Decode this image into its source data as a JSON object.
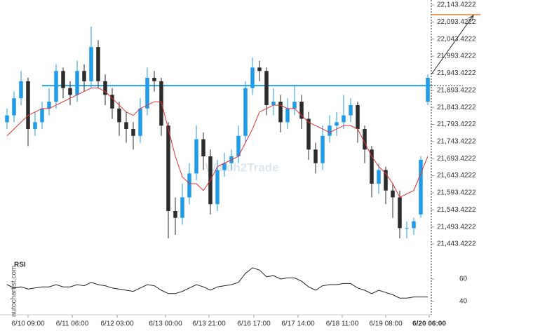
{
  "chart_data": {
    "type": "candlestick",
    "watermark": "Watch2Trade",
    "source": "autochartist.com",
    "rsi_label": "RSI",
    "bull_color": "#1e9be9",
    "bear_color": "#2b2b2b",
    "ma_color": "#e8312f",
    "level_color": "#29a3e0",
    "target_color": "#f08a3a",
    "xlim": [
      -1,
      60.5
    ],
    "xticks": [
      {
        "value": 3,
        "label": "6/10 09:00"
      },
      {
        "value": 9.3,
        "label": "6/11 06:00"
      },
      {
        "value": 15.7,
        "label": "6/12 03:00"
      },
      {
        "value": 22.6,
        "label": "6/13 00:00"
      },
      {
        "value": 28.8,
        "label": "6/13 21:00"
      },
      {
        "value": 35.2,
        "label": "6/16 17:00"
      },
      {
        "value": 41.5,
        "label": "6/17 14:00"
      },
      {
        "value": 47.8,
        "label": "6/18 11:00"
      },
      {
        "value": 54,
        "label": "6/19 08:00"
      },
      {
        "value": 60.2,
        "label": "6/20 06:00"
      }
    ],
    "ylim": [
      21418.8,
      22157.8
    ],
    "yticks": [
      {
        "value": 22143.4222,
        "label": "22,143.4222"
      },
      {
        "value": 22093.4222,
        "label": "22,093.4222"
      },
      {
        "value": 22043.4222,
        "label": "22,043.4222"
      },
      {
        "value": 21993.4222,
        "label": "21,993.4222"
      },
      {
        "value": 21943.4222,
        "label": "21,943.4222"
      },
      {
        "value": 21893.4222,
        "label": "21,893.4222"
      },
      {
        "value": 21843.4222,
        "label": "21,843.4222"
      },
      {
        "value": 21793.4222,
        "label": "21,793.4222"
      },
      {
        "value": 21743.4222,
        "label": "21,743.4222"
      },
      {
        "value": 21693.4222,
        "label": "21,693.4222"
      },
      {
        "value": 21643.4222,
        "label": "21,643.4222"
      },
      {
        "value": 21593.4222,
        "label": "21,593.4222"
      },
      {
        "value": 21543.4222,
        "label": "21,543.4222"
      },
      {
        "value": 21493.4222,
        "label": "21,493.4222"
      },
      {
        "value": 21443.4222,
        "label": "21,443.4222"
      }
    ],
    "level": 21907,
    "arrow_from": [
      60.5,
      21940
    ],
    "arrow_to": [
      66.5,
      22113
    ],
    "target": 22115,
    "target_x": [
      60.5,
      67.5
    ],
    "open": [
      21800,
      21820,
      21870,
      21920,
      21780,
      21800,
      21840,
      21860,
      21950,
      21900,
      21880,
      21950,
      21920,
      22020,
      21920,
      21880,
      21840,
      21800,
      21780,
      21760,
      21840,
      21930,
      21920,
      21790,
      21540,
      21520,
      21580,
      21650,
      21750,
      21700,
      21560,
      21660,
      21680,
      21700,
      21760,
      21900,
      21960,
      21950,
      21850,
      21860,
      21800,
      21840,
      21860,
      21810,
      21720,
      21680,
      21760,
      21790,
      21800,
      21820,
      21850,
      21780,
      21720,
      21620,
      21660,
      21600,
      21580,
      21490,
      21490,
      21530,
      21860
    ],
    "high": [
      21840,
      21890,
      21950,
      21930,
      21830,
      21860,
      21900,
      21970,
      21960,
      21920,
      21980,
      21970,
      22080,
      22040,
      21940,
      21900,
      21860,
      21830,
      21800,
      21870,
      21960,
      21950,
      21930,
      21800,
      21580,
      21620,
      21680,
      21790,
      21770,
      21720,
      21690,
      21710,
      21720,
      21790,
      21920,
      21990,
      21980,
      21960,
      21900,
      21880,
      21870,
      21910,
      21880,
      21830,
      21740,
      21790,
      21820,
      21830,
      21880,
      21870,
      21860,
      21790,
      21730,
      21680,
      21670,
      21620,
      21600,
      21510,
      21520,
      21700,
      21940
    ],
    "low": [
      21780,
      21800,
      21850,
      21730,
      21760,
      21780,
      21820,
      21840,
      21870,
      21850,
      21860,
      21890,
      21900,
      21900,
      21850,
      21810,
      21760,
      21740,
      21720,
      21740,
      21820,
      21890,
      21760,
      21460,
      21470,
      21500,
      21560,
      21630,
      21660,
      21530,
      21540,
      21640,
      21660,
      21680,
      21740,
      21880,
      21920,
      21820,
      21820,
      21770,
      21780,
      21820,
      21780,
      21690,
      21650,
      21660,
      21740,
      21760,
      21780,
      21800,
      21740,
      21680,
      21580,
      21590,
      21560,
      21520,
      21460,
      21460,
      21470,
      21520,
      21850
    ],
    "close": [
      21820,
      21870,
      21920,
      21780,
      21800,
      21840,
      21860,
      21950,
      21900,
      21880,
      21950,
      21920,
      22020,
      21920,
      21880,
      21840,
      21800,
      21780,
      21760,
      21840,
      21930,
      21920,
      21790,
      21540,
      21520,
      21580,
      21650,
      21750,
      21700,
      21560,
      21660,
      21680,
      21700,
      21760,
      21900,
      21960,
      21950,
      21850,
      21860,
      21800,
      21840,
      21860,
      21810,
      21720,
      21680,
      21760,
      21790,
      21800,
      21820,
      21850,
      21780,
      21720,
      21620,
      21660,
      21600,
      21580,
      21490,
      21490,
      21510,
      21690,
      21930
    ],
    "ma": [
      21760,
      21780,
      21800,
      21820,
      21830,
      21840,
      21840,
      21850,
      21860,
      21870,
      21880,
      21890,
      21900,
      21900,
      21890,
      21870,
      21850,
      21830,
      21820,
      21840,
      21850,
      21860,
      21860,
      21780,
      21700,
      21640,
      21620,
      21620,
      21600,
      21630,
      21670,
      21680,
      21690,
      21700,
      21740,
      21780,
      21830,
      21840,
      21850,
      21850,
      21840,
      21840,
      21820,
      21800,
      21790,
      21780,
      21770,
      21780,
      21790,
      21790,
      21780,
      21740,
      21700,
      21670,
      21650,
      21620,
      21580,
      21590,
      21600,
      21650,
      21700
    ],
    "rsi": [
      55,
      52,
      53,
      51,
      52,
      53,
      53,
      55,
      53,
      53,
      55,
      54,
      57,
      55,
      54,
      52,
      51,
      50,
      49,
      52,
      55,
      54,
      50,
      47,
      47,
      49,
      52,
      55,
      53,
      50,
      53,
      54,
      55,
      57,
      65,
      70,
      68,
      62,
      63,
      60,
      61,
      61,
      58,
      53,
      50,
      54,
      55,
      55,
      56,
      56,
      52,
      50,
      47,
      50,
      48,
      46,
      43,
      43,
      44,
      44,
      44
    ],
    "rsi_ylim": [
      30,
      75
    ],
    "rsi_yticks": [
      60,
      40
    ]
  }
}
